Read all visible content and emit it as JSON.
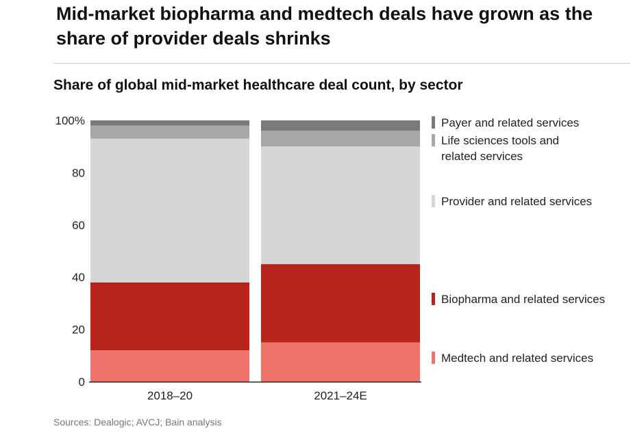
{
  "headline": "Mid-market biopharma and medtech deals have grown as the share of provider deals shrinks",
  "sources": "Sources: Dealogic; AVCJ; Bain analysis",
  "chart_data": {
    "type": "bar",
    "stacked": true,
    "title": "Share of global mid-market healthcare deal count, by sector",
    "categories": [
      "2018–20",
      "2021–24E"
    ],
    "ylim": [
      0,
      100
    ],
    "yticks": [
      0,
      20,
      40,
      60,
      80,
      100
    ],
    "ytick_labels": [
      "0",
      "20",
      "40",
      "60",
      "80",
      "100%"
    ],
    "grid": false,
    "legend_position": "right",
    "series": [
      {
        "name": "Medtech and related services",
        "values": [
          12,
          15
        ],
        "color": "#ef726b"
      },
      {
        "name": "Biopharma and related services",
        "values": [
          26,
          30
        ],
        "color": "#b8241b"
      },
      {
        "name": "Provider and related services",
        "values": [
          55,
          45
        ],
        "color": "#d6d6d6"
      },
      {
        "name": "Life sciences tools and related services",
        "values": [
          5,
          6
        ],
        "color": "#a8a8a8"
      },
      {
        "name": "Payer and related services",
        "values": [
          2,
          4
        ],
        "color": "#7a7a7a"
      }
    ]
  }
}
